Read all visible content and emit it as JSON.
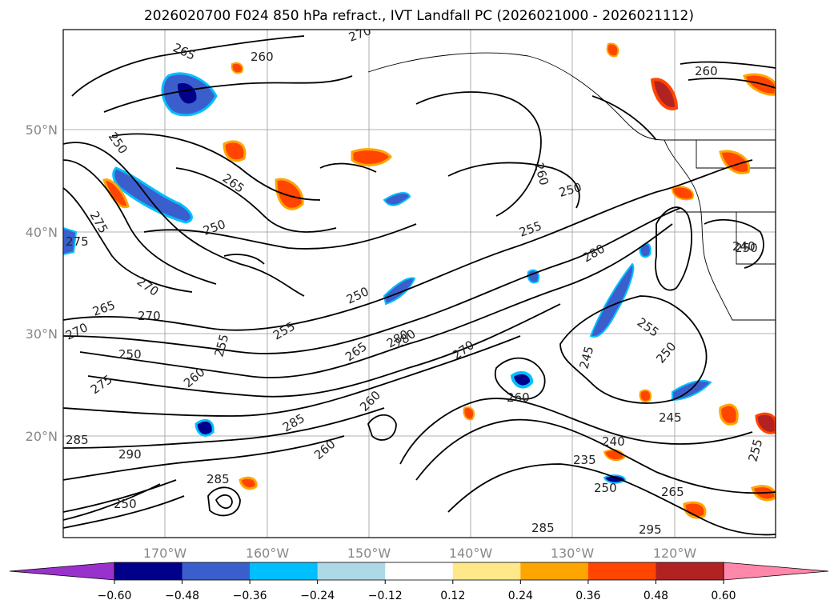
{
  "title": "2026020700 F024 850 hPa refract., IVT Landfall PC (2026021000 - 2026021112)",
  "lat_labels": [
    "50°N",
    "40°N",
    "30°N",
    "20°N"
  ],
  "lon_labels": [
    "170°W",
    "160°W",
    "150°W",
    "140°W",
    "130°W",
    "120°W"
  ],
  "colorbar": {
    "ticks": [
      "−0.60",
      "−0.48",
      "−0.36",
      "−0.24",
      "−0.12",
      "0.12",
      "0.24",
      "0.36",
      "0.48",
      "0.60"
    ],
    "colors": [
      "#9932cc",
      "#00008b",
      "#3a5fcd",
      "#00bfff",
      "#add8e6",
      "#ffffff",
      "#ffe88a",
      "#ffa500",
      "#ff4500",
      "#b22222",
      "#ff88aa"
    ]
  },
  "contour_labels": [
    "265",
    "260",
    "270",
    "260",
    "250",
    "265",
    "250",
    "260",
    "275",
    "250",
    "240",
    "275",
    "270",
    "250",
    "265",
    "270",
    "255",
    "250",
    "255",
    "270",
    "265",
    "280",
    "270",
    "250",
    "255",
    "280",
    "245",
    "260",
    "255",
    "250",
    "260",
    "280",
    "275",
    "285",
    "260",
    "285",
    "290",
    "245",
    "260",
    "240",
    "235",
    "250",
    "265",
    "285",
    "295",
    "285",
    "255",
    "250"
  ]
}
